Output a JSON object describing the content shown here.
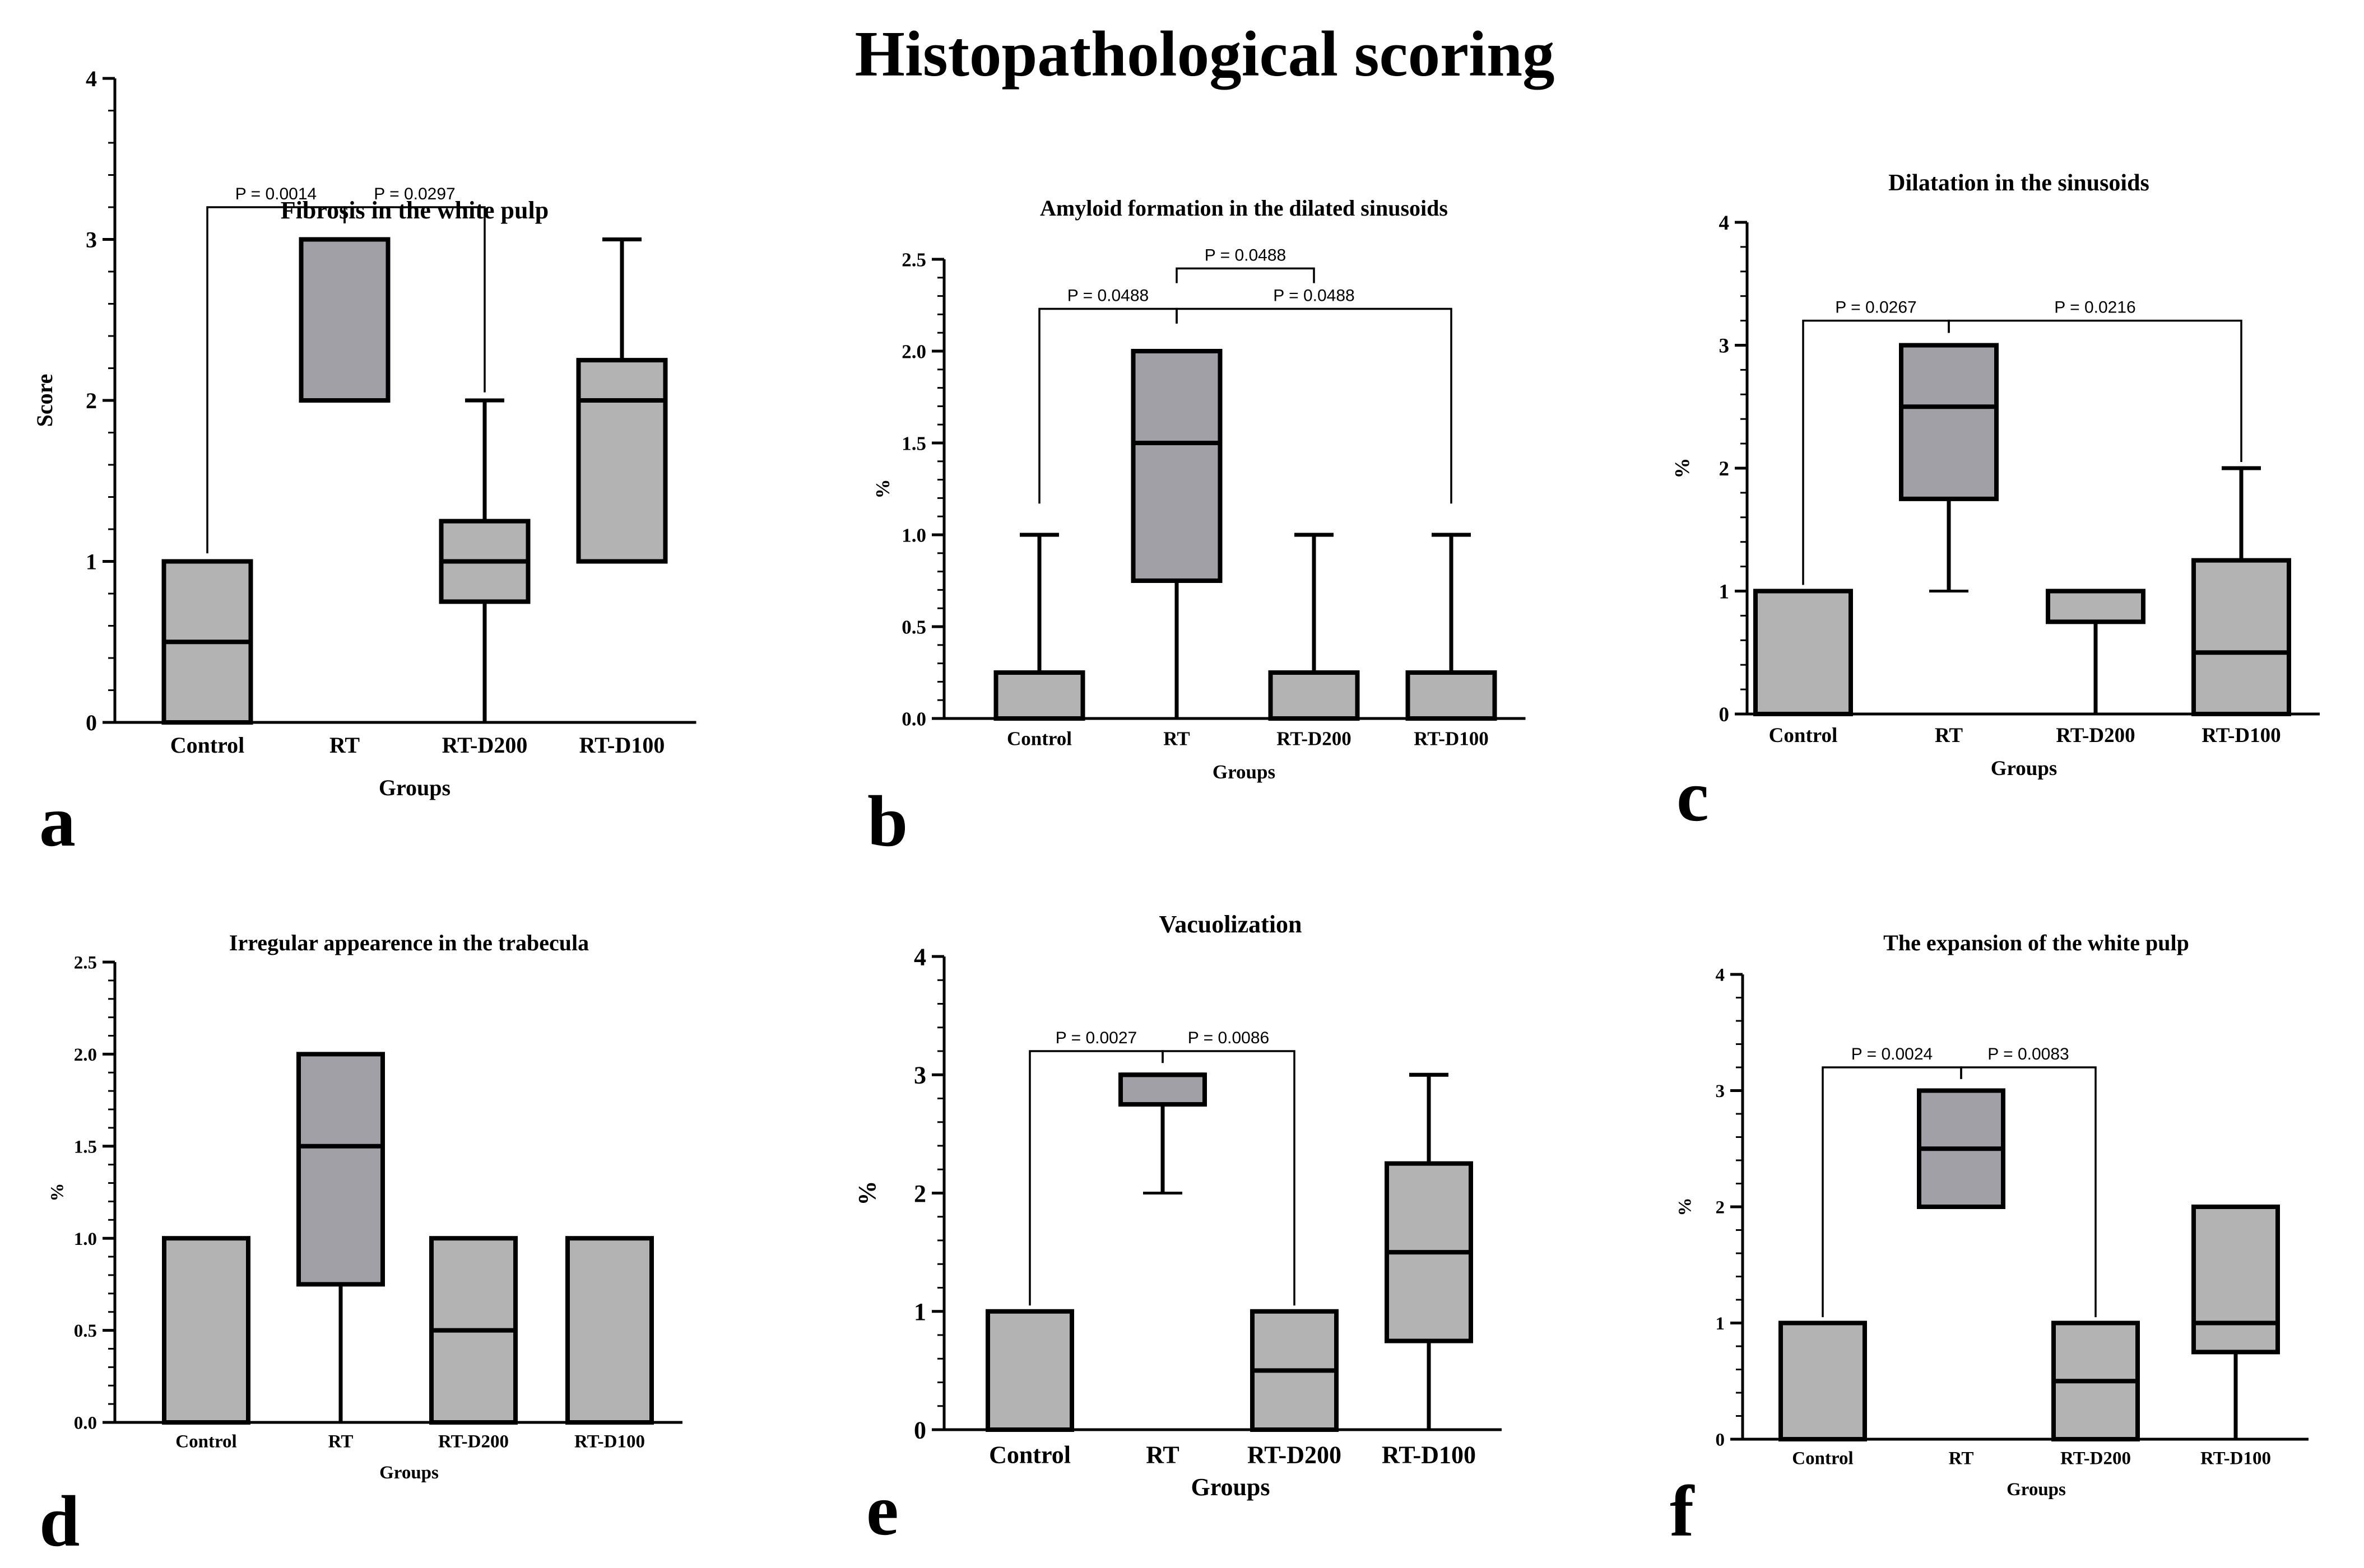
{
  "figure_title": "Histopathological scoring",
  "colors": {
    "box_light": "#b3b3b3",
    "box_dark": "#a1a0a7",
    "stroke": "#000000",
    "background": "#ffffff"
  },
  "chart_data": [
    {
      "panel": "a",
      "type": "boxplot",
      "title": "Fibrosis in the white pulp",
      "xlabel": "Groups",
      "ylabel": "Score",
      "ylim": [
        0,
        4
      ],
      "yticks": [
        "0",
        "1",
        "2",
        "3",
        "4"
      ],
      "categories": [
        "Control",
        "RT",
        "RT-D200",
        "RT-D100"
      ],
      "boxes": [
        {
          "group": "Control",
          "min": 0,
          "q1": 0,
          "median": 0.5,
          "q3": 1,
          "max": 1,
          "fill": "light"
        },
        {
          "group": "RT",
          "min": 2,
          "q1": 2,
          "median": 3,
          "q3": 3,
          "max": 3,
          "fill": "dark"
        },
        {
          "group": "RT-D200",
          "min": 0,
          "q1": 0.75,
          "median": 1,
          "q3": 1.25,
          "max": 2,
          "fill": "light"
        },
        {
          "group": "RT-D100",
          "min": 1,
          "q1": 1,
          "median": 2,
          "q3": 2.25,
          "max": 3,
          "fill": "light"
        }
      ],
      "comparisons": [
        {
          "label": "P = 0.0014",
          "from": "Control",
          "to": "RT",
          "level": 3.2,
          "drop_from": 1.05,
          "drop_to": 3.1
        },
        {
          "label": "P = 0.0297",
          "from": "RT",
          "to": "RT-D200",
          "level": 3.2,
          "drop_from": 3.1,
          "drop_to": 2.05
        }
      ]
    },
    {
      "panel": "b",
      "type": "boxplot",
      "title": "Amyloid formation in the dilated sinusoids",
      "xlabel": "Groups",
      "ylabel": "%",
      "ylim": [
        0,
        2.5
      ],
      "yticks": [
        "0.0",
        "0.5",
        "1.0",
        "1.5",
        "2.0",
        "2.5"
      ],
      "categories": [
        "Control",
        "RT",
        "RT-D200",
        "RT-D100"
      ],
      "boxes": [
        {
          "group": "Control",
          "min": 0,
          "q1": 0,
          "median": 0,
          "q3": 0.25,
          "max": 1,
          "fill": "light"
        },
        {
          "group": "RT",
          "min": 0,
          "q1": 0.75,
          "median": 1.5,
          "q3": 2,
          "max": 2,
          "fill": "dark"
        },
        {
          "group": "RT-D200",
          "min": 0,
          "q1": 0,
          "median": 0,
          "q3": 0.25,
          "max": 1,
          "fill": "light"
        },
        {
          "group": "RT-D100",
          "min": 0,
          "q1": 0,
          "median": 0,
          "q3": 0.25,
          "max": 1,
          "fill": "light"
        }
      ],
      "comparisons": [
        {
          "label": "P = 0.0488",
          "from": "Control",
          "to": "RT",
          "level": 2.23,
          "drop_from": 1.17,
          "drop_to": 2.15
        },
        {
          "label": "P = 0.0488",
          "from": "RT",
          "to": "RT-D200",
          "level": 2.45,
          "drop_from": 2.37,
          "drop_to": 2.37
        },
        {
          "label": "P = 0.0488",
          "from": "RT",
          "to": "RT-D100",
          "level": 2.23,
          "drop_from": 2.15,
          "drop_to": 1.17
        }
      ]
    },
    {
      "panel": "c",
      "type": "boxplot",
      "title": "Dilatation in the sinusoids",
      "xlabel": "Groups",
      "ylabel": "%",
      "ylim": [
        0,
        4
      ],
      "yticks": [
        "0",
        "1",
        "2",
        "3",
        "4"
      ],
      "categories": [
        "Control",
        "RT",
        "RT-D200",
        "RT-D100"
      ],
      "boxes": [
        {
          "group": "Control",
          "min": 0,
          "q1": 0,
          "median": 1,
          "q3": 1,
          "max": 1,
          "fill": "light"
        },
        {
          "group": "RT",
          "min": 1,
          "q1": 1.75,
          "median": 2.5,
          "q3": 3,
          "max": 3,
          "fill": "dark"
        },
        {
          "group": "RT-D200",
          "min": 0,
          "q1": 0.75,
          "median": 1,
          "q3": 1,
          "max": 1,
          "fill": "light"
        },
        {
          "group": "RT-D100",
          "min": 0,
          "q1": 0,
          "median": 0.5,
          "q3": 1.25,
          "max": 2,
          "fill": "light"
        }
      ],
      "comparisons": [
        {
          "label": "P = 0.0267",
          "from": "Control",
          "to": "RT",
          "level": 3.2,
          "drop_from": 1.05,
          "drop_to": 3.1
        },
        {
          "label": "P = 0.0216",
          "from": "RT",
          "to": "RT-D100",
          "level": 3.2,
          "drop_from": 3.1,
          "drop_to": 2.05
        }
      ]
    },
    {
      "panel": "d",
      "type": "boxplot",
      "title": "Irregular appearence in the trabecula",
      "xlabel": "Groups",
      "ylabel": "%",
      "ylim": [
        0,
        2.5
      ],
      "yticks": [
        "0.0",
        "0.5",
        "1.0",
        "1.5",
        "2.0",
        "2.5"
      ],
      "categories": [
        "Control",
        "RT",
        "RT-D200",
        "RT-D100"
      ],
      "boxes": [
        {
          "group": "Control",
          "min": 0,
          "q1": 0,
          "median": 0,
          "q3": 1,
          "max": 1,
          "fill": "light"
        },
        {
          "group": "RT",
          "min": 0,
          "q1": 0.75,
          "median": 1.5,
          "q3": 2,
          "max": 2,
          "fill": "dark"
        },
        {
          "group": "RT-D200",
          "min": 0,
          "q1": 0,
          "median": 0.5,
          "q3": 1,
          "max": 1,
          "fill": "light"
        },
        {
          "group": "RT-D100",
          "min": 0,
          "q1": 0,
          "median": 0,
          "q3": 1,
          "max": 1,
          "fill": "light"
        }
      ],
      "comparisons": []
    },
    {
      "panel": "e",
      "type": "boxplot",
      "title": "Vacuolization",
      "xlabel": "Groups",
      "ylabel": "%",
      "ylim": [
        0,
        4
      ],
      "yticks": [
        "0",
        "1",
        "2",
        "3",
        "4"
      ],
      "categories": [
        "Control",
        "RT",
        "RT-D200",
        "RT-D100"
      ],
      "boxes": [
        {
          "group": "Control",
          "min": 0,
          "q1": 0,
          "median": 0,
          "q3": 1,
          "max": 1,
          "fill": "light"
        },
        {
          "group": "RT",
          "min": 2,
          "q1": 2.75,
          "median": 3,
          "q3": 3,
          "max": 3,
          "fill": "dark"
        },
        {
          "group": "RT-D200",
          "min": 0,
          "q1": 0,
          "median": 0.5,
          "q3": 1,
          "max": 1,
          "fill": "light"
        },
        {
          "group": "RT-D100",
          "min": 0,
          "q1": 0.75,
          "median": 1.5,
          "q3": 2.25,
          "max": 3,
          "fill": "light"
        }
      ],
      "comparisons": [
        {
          "label": "P = 0.0027",
          "from": "Control",
          "to": "RT",
          "level": 3.2,
          "drop_from": 1.05,
          "drop_to": 3.1
        },
        {
          "label": "P = 0.0086",
          "from": "RT",
          "to": "RT-D200",
          "level": 3.2,
          "drop_from": 3.1,
          "drop_to": 1.05
        }
      ]
    },
    {
      "panel": "f",
      "type": "boxplot",
      "title": "The expansion of the white pulp",
      "xlabel": "Groups",
      "ylabel": "%",
      "ylim": [
        0,
        4
      ],
      "yticks": [
        "0",
        "1",
        "2",
        "3",
        "4"
      ],
      "categories": [
        "Control",
        "RT",
        "RT-D200",
        "RT-D100"
      ],
      "boxes": [
        {
          "group": "Control",
          "min": 0,
          "q1": 0,
          "median": 0,
          "q3": 1,
          "max": 1,
          "fill": "light"
        },
        {
          "group": "RT",
          "min": 2,
          "q1": 2,
          "median": 2.5,
          "q3": 3,
          "max": 3,
          "fill": "dark"
        },
        {
          "group": "RT-D200",
          "min": 0,
          "q1": 0,
          "median": 0.5,
          "q3": 1,
          "max": 1,
          "fill": "light"
        },
        {
          "group": "RT-D100",
          "min": 0,
          "q1": 0.75,
          "median": 1,
          "q3": 2,
          "max": 2,
          "fill": "light"
        }
      ],
      "comparisons": [
        {
          "label": "P = 0.0024",
          "from": "Control",
          "to": "RT",
          "level": 3.2,
          "drop_from": 1.05,
          "drop_to": 3.1
        },
        {
          "label": "P = 0.0083",
          "from": "RT",
          "to": "RT-D200",
          "level": 3.2,
          "drop_from": 3.1,
          "drop_to": 1.05
        }
      ]
    }
  ]
}
